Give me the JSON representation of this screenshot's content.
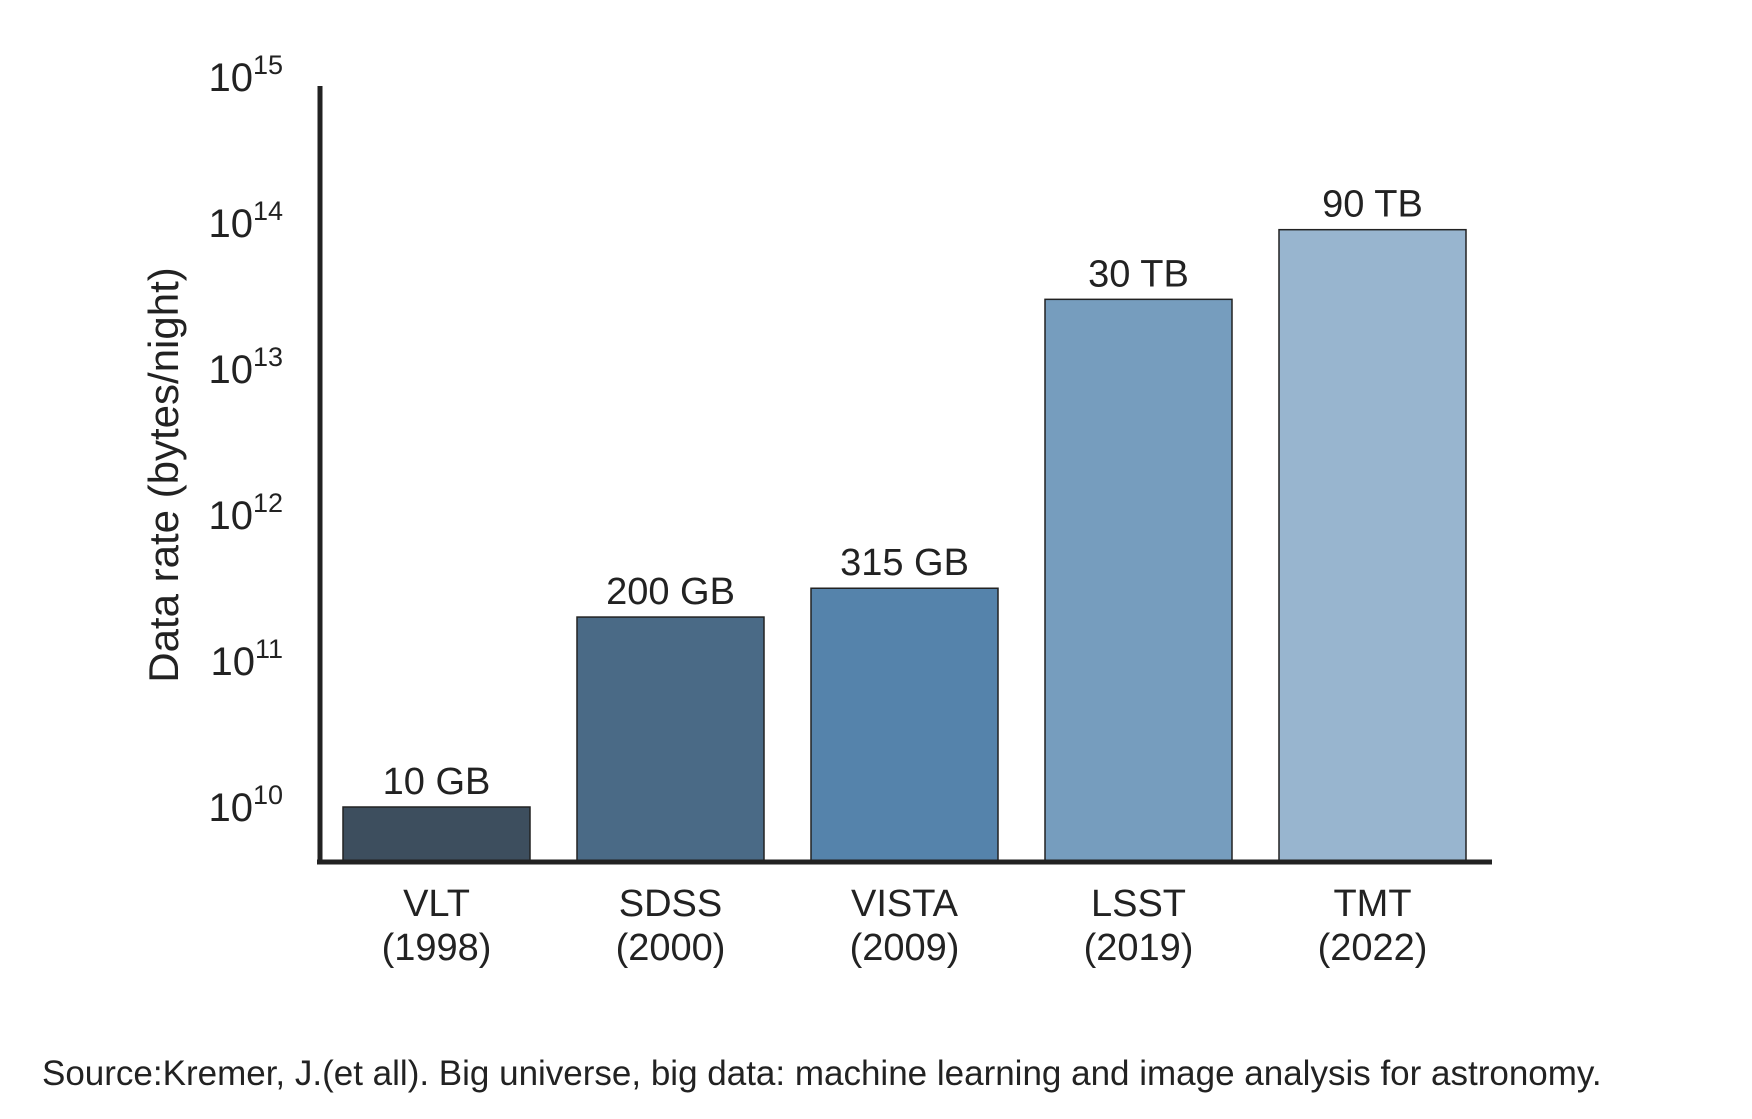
{
  "chart_data": {
    "type": "bar",
    "title": "",
    "xlabel": "",
    "ylabel": "Data rate (bytes/night)",
    "y_scale": "log",
    "ylim": [
      3000000000,
      1000000000000000
    ],
    "y_ticks": [
      {
        "value": 10000000000,
        "base": "10",
        "exp": "10"
      },
      {
        "value": 100000000000,
        "base": "10",
        "exp": "11"
      },
      {
        "value": 1000000000000,
        "base": "10",
        "exp": "12"
      },
      {
        "value": 10000000000000,
        "base": "10",
        "exp": "13"
      },
      {
        "value": 100000000000000,
        "base": "10",
        "exp": "14"
      },
      {
        "value": 1000000000000000,
        "base": "10",
        "exp": "15"
      }
    ],
    "categories": [
      {
        "name": "VLT",
        "year": "(1998)"
      },
      {
        "name": "SDSS",
        "year": "(2000)"
      },
      {
        "name": "VISTA",
        "year": "(2009)"
      },
      {
        "name": "LSST",
        "year": "(2019)"
      },
      {
        "name": "TMT",
        "year": "(2022)"
      }
    ],
    "values": [
      10000000000,
      200000000000,
      315000000000,
      30000000000000,
      90000000000000
    ],
    "data_labels": [
      "10 GB",
      "200 GB",
      "315 GB",
      "30 TB",
      "90 TB"
    ],
    "colors": [
      "#3d4e5e",
      "#4a6a86",
      "#5583ab",
      "#769dbe",
      "#98b5cf"
    ],
    "grid": false,
    "legend": "none"
  },
  "source": "Source:Kremer, J.(et all). Big universe, big data: machine learning and image analysis for astronomy."
}
